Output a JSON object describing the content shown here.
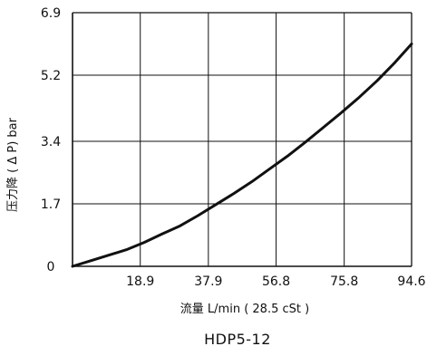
{
  "chart_data": {
    "type": "line",
    "title": "",
    "xlabel": "流量 L/min ( 28.5 cSt )",
    "ylabel": "压力降 ( Δ P) bar",
    "caption": "HDP5-12",
    "x_ticks": [
      18.9,
      37.9,
      56.8,
      75.8,
      94.6
    ],
    "x_tick_labels": [
      "18.9",
      "37.9",
      "56.8",
      "75.8",
      "94.6"
    ],
    "y_ticks": [
      0,
      1.7,
      3.4,
      5.2,
      6.9
    ],
    "y_tick_labels": [
      "0",
      "1.7",
      "3.4",
      "5.2",
      "6.9"
    ],
    "xlim": [
      0,
      94.6
    ],
    "ylim": [
      0,
      6.9
    ],
    "grid": true,
    "series": [
      {
        "x": [
          0,
          5,
          10,
          15,
          20,
          25,
          30,
          35,
          40,
          45,
          50,
          55,
          60,
          65,
          70,
          75,
          80,
          85,
          90,
          94.6
        ],
        "y": [
          0,
          0.15,
          0.3,
          0.45,
          0.65,
          0.88,
          1.1,
          1.38,
          1.68,
          1.98,
          2.3,
          2.65,
          3.0,
          3.38,
          3.78,
          4.18,
          4.6,
          5.05,
          5.55,
          6.05
        ]
      }
    ]
  }
}
